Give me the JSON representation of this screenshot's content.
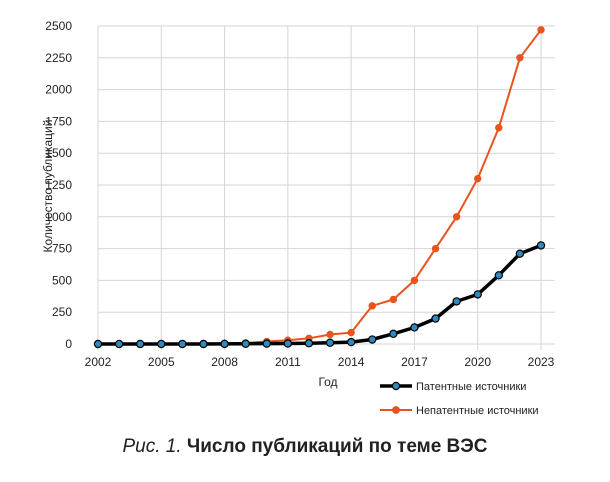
{
  "chart_data": {
    "type": "line",
    "xlabel": "Год",
    "ylabel": "Количество публикаций",
    "xlim": [
      2002,
      2023
    ],
    "ylim": [
      0,
      2500
    ],
    "x_ticks": [
      "2002",
      "2005",
      "2008",
      "2011",
      "2014",
      "2017",
      "2020",
      "2023"
    ],
    "y_ticks": [
      "0",
      "250",
      "500",
      "750",
      "1000",
      "1250",
      "1500",
      "1750",
      "2000",
      "2250",
      "2500"
    ],
    "grid": true,
    "legend_position": "bottom-right",
    "series": [
      {
        "name": "Патентные источники",
        "color": "#000000",
        "marker_color": "#2e8bc0",
        "x": [
          2002,
          2003,
          2004,
          2005,
          2006,
          2007,
          2008,
          2009,
          2010,
          2011,
          2012,
          2013,
          2014,
          2015,
          2016,
          2017,
          2018,
          2019,
          2020,
          2021,
          2022,
          2023
        ],
        "y": [
          0,
          0,
          0,
          0,
          0,
          0,
          1,
          2,
          3,
          4,
          6,
          10,
          15,
          35,
          80,
          130,
          200,
          335,
          390,
          540,
          710,
          775
        ]
      },
      {
        "name": "Непатентные источники",
        "color": "#e8541e",
        "marker_color": "#e8541e",
        "x": [
          2005,
          2006,
          2007,
          2008,
          2009,
          2010,
          2011,
          2012,
          2013,
          2014,
          2015,
          2016,
          2017,
          2018,
          2019,
          2020,
          2021,
          2022,
          2023
        ],
        "y": [
          2,
          3,
          4,
          5,
          8,
          20,
          30,
          45,
          75,
          90,
          300,
          350,
          500,
          750,
          1000,
          1300,
          1700,
          2250,
          2470
        ]
      }
    ]
  },
  "caption": {
    "prefix": "Рис. 1.",
    "title": "Число публикаций по теме ВЭС"
  }
}
